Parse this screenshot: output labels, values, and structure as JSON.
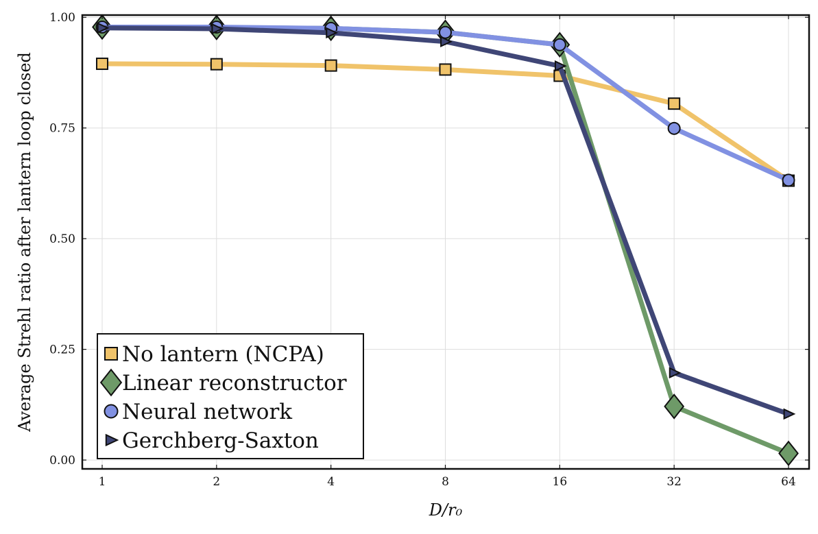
{
  "chart_data": {
    "type": "line",
    "xlabel": "D/r₀",
    "ylabel": "Average Strehl ratio after lantern loop closed",
    "x": [
      1,
      2,
      4,
      8,
      16,
      32,
      64
    ],
    "x_tick_labels": [
      "1",
      "2",
      "4",
      "8",
      "16",
      "32",
      "64"
    ],
    "x_scale": "log2",
    "ylim": [
      -0.02,
      1.005
    ],
    "y_ticks": [
      0.0,
      0.25,
      0.5,
      0.75,
      1.0
    ],
    "y_tick_labels": [
      "0.00",
      "0.25",
      "0.50",
      "0.75",
      "1.00"
    ],
    "grid": true,
    "legend_position": "bottom-left",
    "series": [
      {
        "name": "No lantern (NCPA)",
        "color": "#f0c36a",
        "marker": "square",
        "values": [
          0.895,
          0.894,
          0.891,
          0.882,
          0.868,
          0.805,
          0.631
        ]
      },
      {
        "name": "Linear reconstructor",
        "color": "#6e9a68",
        "marker": "diamond",
        "values": [
          0.978,
          0.977,
          0.975,
          0.966,
          0.938,
          0.121,
          0.015
        ]
      },
      {
        "name": "Neural network",
        "color": "#8191e2",
        "marker": "circle",
        "values": [
          0.978,
          0.978,
          0.975,
          0.966,
          0.938,
          0.749,
          0.632
        ]
      },
      {
        "name": "Gerchberg-Saxton",
        "color": "#3f4676",
        "marker": "triangle-right",
        "values": [
          0.976,
          0.974,
          0.965,
          0.945,
          0.89,
          0.197,
          0.104
        ]
      }
    ]
  }
}
